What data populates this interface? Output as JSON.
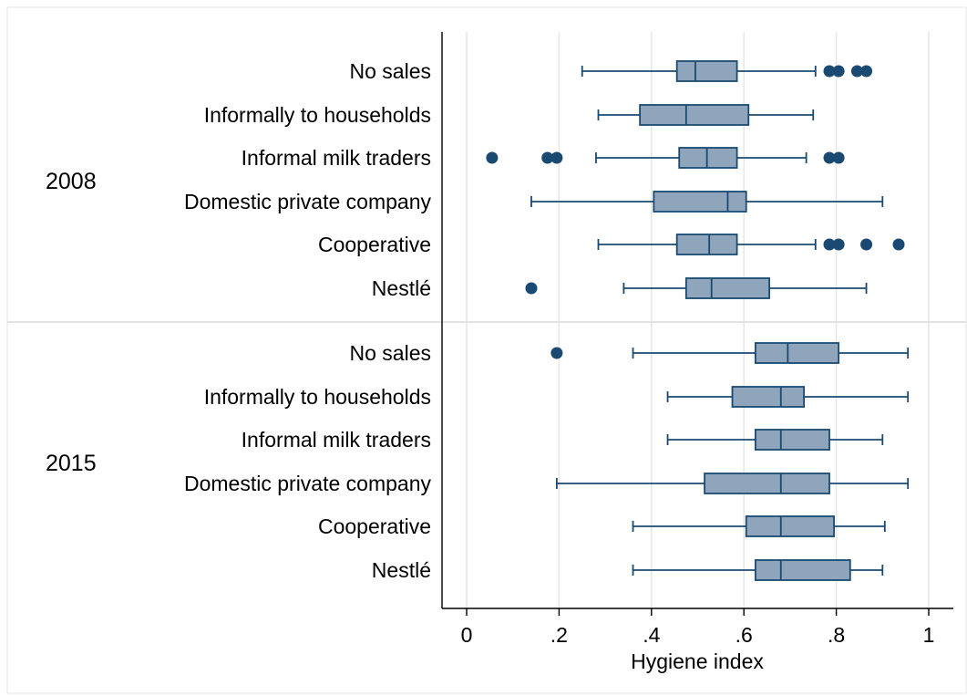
{
  "chart_data": {
    "type": "boxplot",
    "xlabel": "Hygiene index",
    "xlim": [
      0,
      1
    ],
    "x_ticks": [
      0,
      0.2,
      0.4,
      0.6,
      0.8,
      1
    ],
    "x_tick_labels": [
      "0",
      ".2",
      ".4",
      ".6",
      ".8",
      "1"
    ],
    "grid": "vertical",
    "colors": {
      "box_fill": "#8fa5bb",
      "box_stroke": "#1a4a72",
      "outlier": "#1a4a72"
    },
    "groups": [
      {
        "label": "2008",
        "categories": [
          {
            "label": "No sales",
            "whisker_low": 0.25,
            "q1": 0.455,
            "median": 0.495,
            "q3": 0.585,
            "whisker_high": 0.755,
            "outliers": [
              0.785,
              0.805,
              0.845,
              0.865
            ]
          },
          {
            "label": "Informally to households",
            "whisker_low": 0.285,
            "q1": 0.375,
            "median": 0.475,
            "q3": 0.61,
            "whisker_high": 0.75,
            "outliers": []
          },
          {
            "label": "Informal milk traders",
            "whisker_low": 0.28,
            "q1": 0.46,
            "median": 0.52,
            "q3": 0.585,
            "whisker_high": 0.735,
            "outliers": [
              0.055,
              0.175,
              0.195,
              0.785,
              0.805
            ]
          },
          {
            "label": "Domestic private company",
            "whisker_low": 0.14,
            "q1": 0.405,
            "median": 0.565,
            "q3": 0.605,
            "whisker_high": 0.9,
            "outliers": []
          },
          {
            "label": "Cooperative",
            "whisker_low": 0.285,
            "q1": 0.455,
            "median": 0.525,
            "q3": 0.585,
            "whisker_high": 0.755,
            "outliers": [
              0.785,
              0.805,
              0.865,
              0.935
            ]
          },
          {
            "label": "Nestlé",
            "whisker_low": 0.34,
            "q1": 0.475,
            "median": 0.53,
            "q3": 0.655,
            "whisker_high": 0.865,
            "outliers": [
              0.14
            ]
          }
        ]
      },
      {
        "label": "2015",
        "categories": [
          {
            "label": "No sales",
            "whisker_low": 0.36,
            "q1": 0.625,
            "median": 0.695,
            "q3": 0.805,
            "whisker_high": 0.955,
            "outliers": [
              0.195
            ]
          },
          {
            "label": "Informally to households",
            "whisker_low": 0.435,
            "q1": 0.575,
            "median": 0.68,
            "q3": 0.73,
            "whisker_high": 0.955,
            "outliers": []
          },
          {
            "label": "Informal milk traders",
            "whisker_low": 0.435,
            "q1": 0.625,
            "median": 0.68,
            "q3": 0.785,
            "whisker_high": 0.9,
            "outliers": []
          },
          {
            "label": "Domestic private company",
            "whisker_low": 0.195,
            "q1": 0.515,
            "median": 0.68,
            "q3": 0.785,
            "whisker_high": 0.955,
            "outliers": []
          },
          {
            "label": "Cooperative",
            "whisker_low": 0.36,
            "q1": 0.605,
            "median": 0.68,
            "q3": 0.795,
            "whisker_high": 0.905,
            "outliers": []
          },
          {
            "label": "Nestlé",
            "whisker_low": 0.36,
            "q1": 0.625,
            "median": 0.68,
            "q3": 0.83,
            "whisker_high": 0.9,
            "outliers": []
          }
        ]
      }
    ]
  }
}
